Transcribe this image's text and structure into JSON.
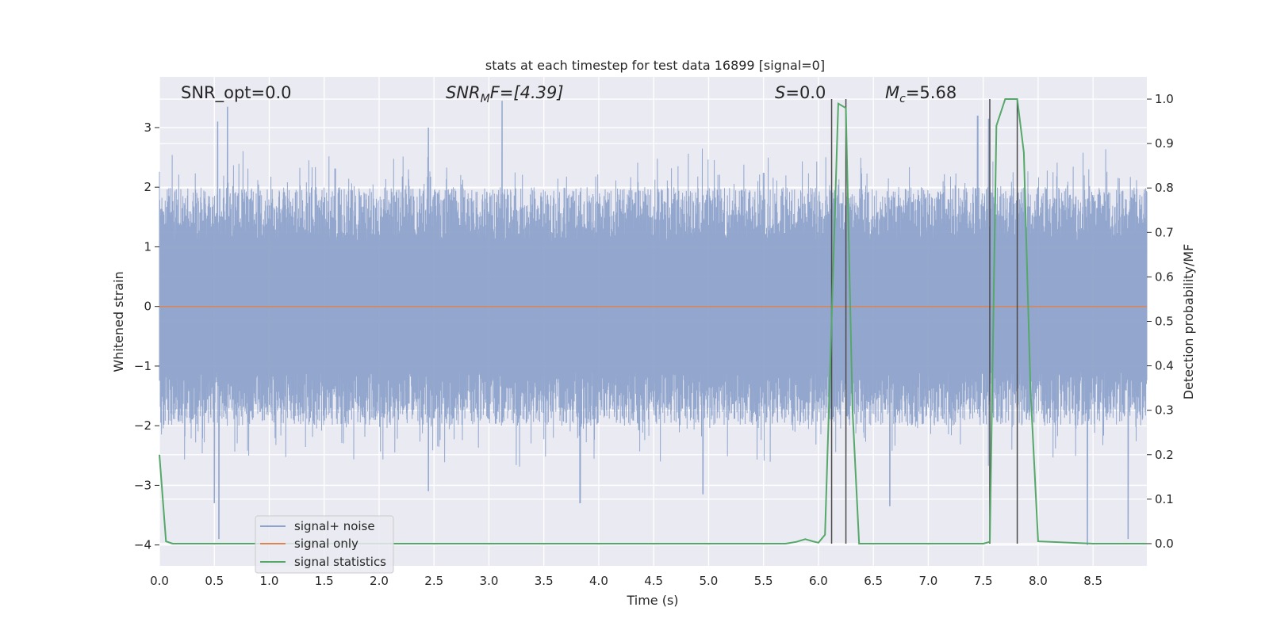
{
  "chart_data": {
    "type": "line",
    "title": "stats at each timestep for test data 16899 [signal=0]",
    "xlabel": "Time (s)",
    "ylabel": "Whitened strain",
    "y2label": "Detection probability/MF",
    "xlim": [
      0,
      8.99
    ],
    "ylim": [
      -4.35,
      3.85
    ],
    "y2lim": [
      -0.05,
      1.05
    ],
    "xticks": [
      "0.0",
      "0.5",
      "1.0",
      "1.5",
      "2.0",
      "2.5",
      "3.0",
      "3.5",
      "4.0",
      "4.5",
      "5.0",
      "5.5",
      "6.0",
      "6.5",
      "7.0",
      "7.5",
      "8.0",
      "8.5"
    ],
    "yticks": [
      "−4",
      "−3",
      "−2",
      "−1",
      "0",
      "1",
      "2",
      "3"
    ],
    "y2ticks": [
      "0.0",
      "0.1",
      "0.2",
      "0.3",
      "0.4",
      "0.5",
      "0.6",
      "0.7",
      "0.8",
      "0.9",
      "1.0"
    ],
    "annotations": {
      "snr_opt": "SNR_opt=0.0",
      "snr_mf_main": "SNR",
      "snr_mf_sub": "M",
      "snr_mf_rest": "F=[4.39]",
      "s_var": "S",
      "s_rest": "=0.0",
      "mc_main": "M",
      "mc_sub": "c",
      "mc_rest": "=5.68"
    },
    "legend": {
      "placement": "lower-left",
      "entries": [
        "signal+ noise",
        "signal only",
        "signal statistics"
      ]
    },
    "colors": {
      "noise": "#8ea3cb",
      "signal": "#dd8452",
      "stats": "#55a868",
      "vline": "#4a4a4a",
      "background": "#eaeaf2",
      "grid": "#ffffff"
    },
    "series": [
      {
        "name": "signal+ noise",
        "kind": "noise",
        "envelope_hi": 2.0,
        "envelope_lo": -2.0,
        "peaks": [
          {
            "x": 0.53,
            "y": 3.1
          },
          {
            "x": 0.62,
            "y": 3.35
          },
          {
            "x": 2.45,
            "y": 3.0
          },
          {
            "x": 3.12,
            "y": 3.45
          },
          {
            "x": 7.45,
            "y": 3.2
          },
          {
            "x": 7.55,
            "y": 3.15
          }
        ],
        "troughs": [
          {
            "x": 0.5,
            "y": -3.3
          },
          {
            "x": 0.54,
            "y": -3.9
          },
          {
            "x": 2.45,
            "y": -3.1
          },
          {
            "x": 3.83,
            "y": -3.3
          },
          {
            "x": 4.95,
            "y": -3.15
          },
          {
            "x": 6.65,
            "y": -3.35
          },
          {
            "x": 8.45,
            "y": -4.0
          },
          {
            "x": 8.82,
            "y": -3.9
          }
        ]
      },
      {
        "name": "signal only",
        "kind": "flat",
        "value": 0.0
      },
      {
        "name": "signal statistics",
        "axis": "y2",
        "x": [
          0.0,
          0.06,
          0.12,
          1.0,
          2.0,
          3.0,
          4.0,
          5.0,
          5.7,
          5.8,
          5.88,
          5.95,
          6.0,
          6.06,
          6.12,
          6.18,
          6.25,
          6.31,
          6.37,
          6.5,
          7.0,
          7.5,
          7.56,
          7.62,
          7.7,
          7.81,
          7.87,
          7.93,
          8.0,
          8.5,
          8.99
        ],
        "y": [
          0.2,
          0.005,
          0.0,
          0.0,
          0.0,
          0.0,
          0.0,
          0.0,
          0.0,
          0.004,
          0.01,
          0.005,
          0.002,
          0.02,
          0.5,
          0.99,
          0.98,
          0.3,
          0.0,
          0.0,
          0.0,
          0.0,
          0.004,
          0.94,
          1.0,
          1.0,
          0.88,
          0.35,
          0.005,
          0.0,
          0.0
        ]
      }
    ],
    "vlines": [
      6.12,
      6.25,
      7.56,
      7.81
    ]
  }
}
